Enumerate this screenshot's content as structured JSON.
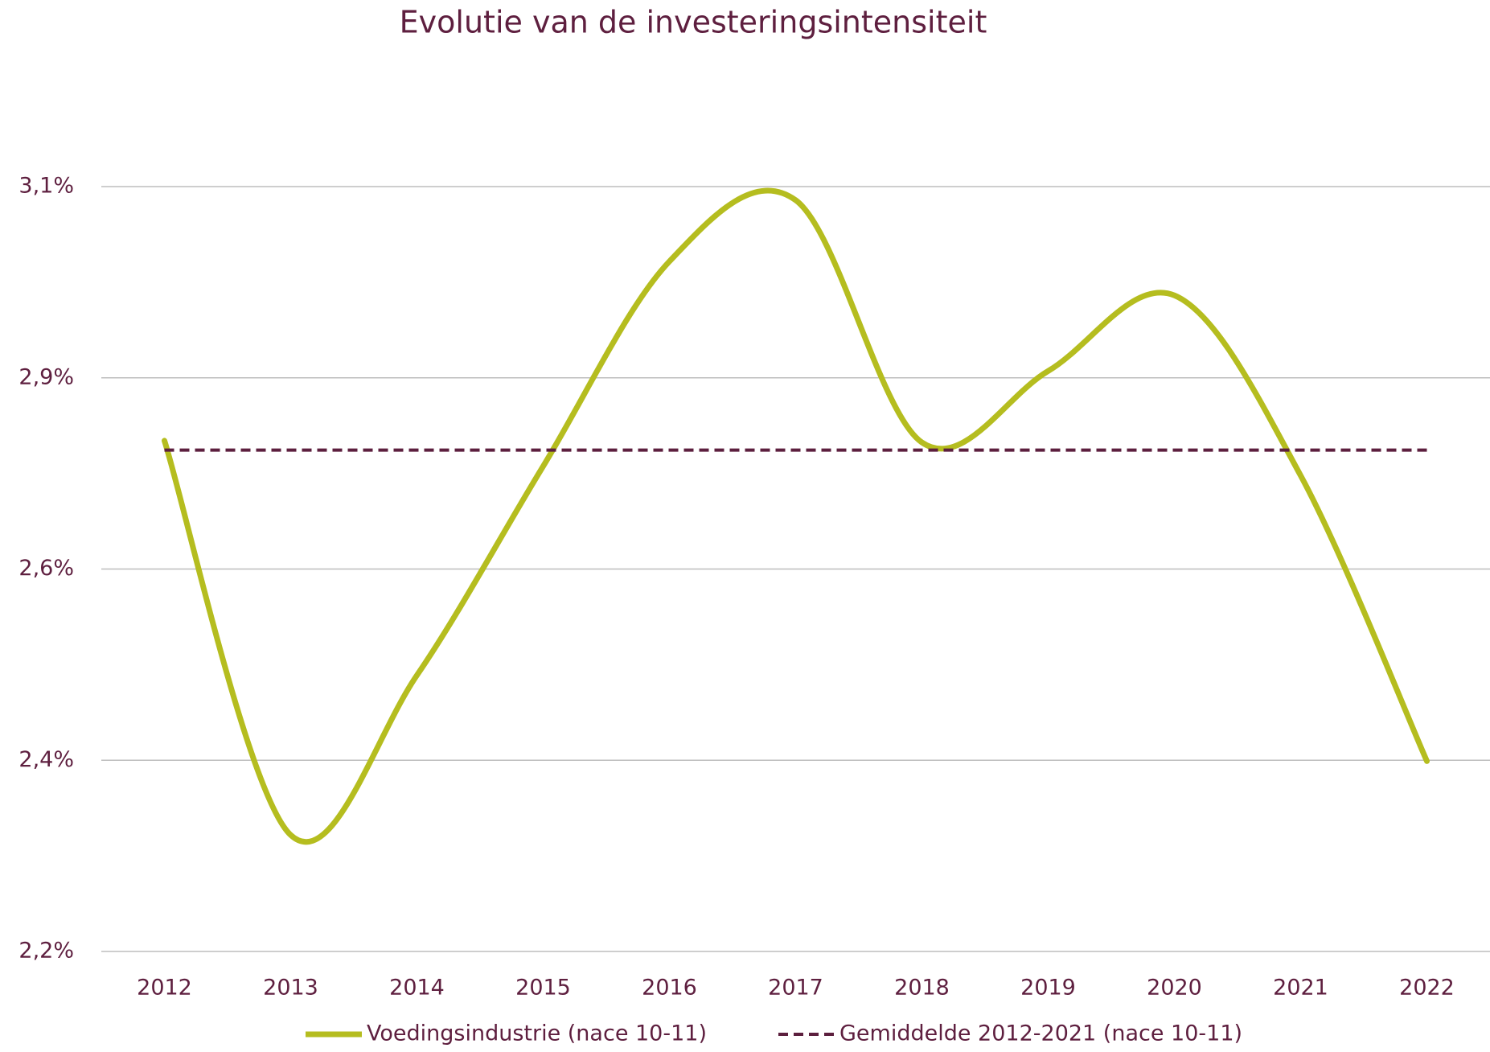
{
  "chart_data": {
    "type": "line",
    "title": "Evolutie van de investeringsintensiteit",
    "categories": [
      "2012",
      "2013",
      "2014",
      "2015",
      "2016",
      "2017",
      "2018",
      "2019",
      "2020",
      "2021",
      "2022"
    ],
    "series": [
      {
        "name": "Voedingsindustrie (nace 10-11)",
        "color": "#b5bd1f",
        "smooth": true,
        "values": [
          2.801,
          2.337,
          2.525,
          2.771,
          3.012,
          3.084,
          2.799,
          2.883,
          2.972,
          2.76,
          2.424
        ]
      },
      {
        "name": "Gemiddelde 2012-2021 (nace 10-11)",
        "color": "#5c1f3e",
        "dashed": true,
        "values": [
          2.79,
          2.79,
          2.79,
          2.79,
          2.79,
          2.79,
          2.79,
          2.79,
          2.79,
          2.79,
          2.79
        ]
      }
    ],
    "ylim": [
      2.2,
      3.1
    ],
    "yticks": [
      {
        "value": 2.2,
        "label": "2,2%"
      },
      {
        "value": 2.425,
        "label": "2,4%"
      },
      {
        "value": 2.65,
        "label": "2,6%"
      },
      {
        "value": 2.875,
        "label": "2,9%"
      },
      {
        "value": 3.1,
        "label": "3,1%"
      }
    ],
    "grid": true,
    "legend": "bottom"
  }
}
